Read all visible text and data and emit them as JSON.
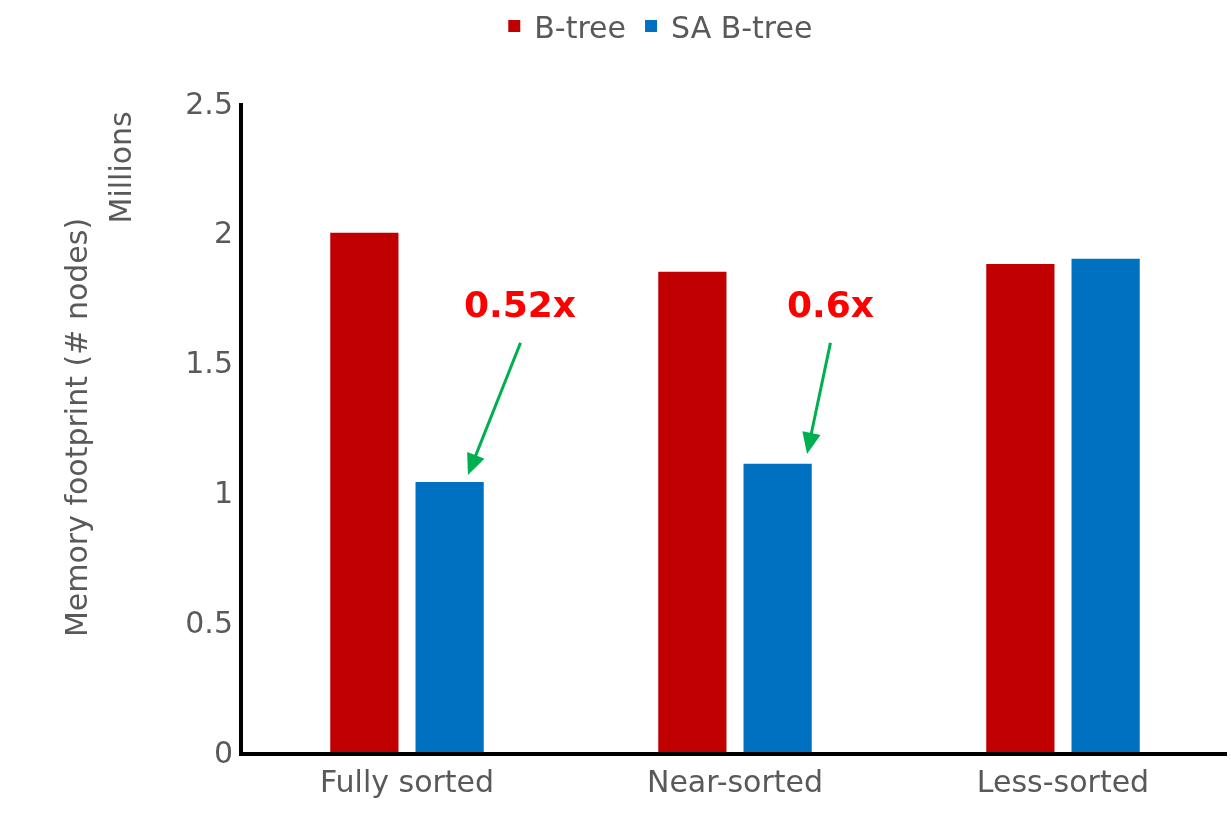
{
  "chart_data": {
    "type": "bar",
    "ylabel": "Memory footprint (# nodes)",
    "categories": [
      "Fully sorted",
      "Near-sorted",
      "Less-sorted"
    ],
    "series": [
      {
        "name": "B-tree",
        "color": "#c00000",
        "values": [
          2.0,
          1.85,
          1.88
        ]
      },
      {
        "name": "SA B-tree",
        "color": "#0070c0",
        "values": [
          1.04,
          1.11,
          1.9
        ]
      }
    ],
    "ylim": [
      0,
      2.5
    ],
    "yticks": [
      0,
      0.5,
      1,
      1.5,
      2,
      2.5
    ],
    "annotations": [
      "Millions",
      "0.52x",
      "0.6x"
    ],
    "legend": "top"
  }
}
